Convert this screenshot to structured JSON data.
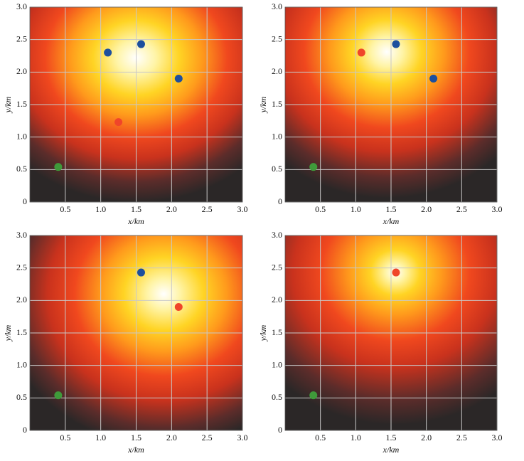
{
  "chart_data": [
    {
      "type": "scatter",
      "xlabel": "x/km",
      "ylabel": "y/km",
      "xlim": [
        0,
        3
      ],
      "ylim": [
        0,
        3
      ],
      "xticks": [
        0.5,
        {
          "value": 1,
          "label": "1.0"
        },
        1.5,
        {
          "value": 2,
          "label": "2.0"
        },
        2.5,
        {
          "value": 3,
          "label": "3.0"
        }
      ],
      "yticks": [
        0,
        0.5,
        {
          "value": 1,
          "label": "1.0"
        },
        1.5,
        {
          "value": 2,
          "label": "2.0"
        },
        2.5,
        {
          "value": 3,
          "label": "3.0"
        }
      ],
      "grid": true,
      "series": [
        {
          "color": "#1d4f9e",
          "x": [
            1.1,
            1.57,
            2.1
          ],
          "values": [
            2.3,
            2.43,
            1.9
          ]
        },
        {
          "color": "#f0452a",
          "x": [
            1.25
          ],
          "values": [
            1.23
          ]
        },
        {
          "color": "#3f9a3a",
          "x": [
            0.4
          ],
          "values": [
            0.54
          ]
        }
      ]
    },
    {
      "type": "scatter",
      "xlabel": "x/km",
      "ylabel": "y/km",
      "xlim": [
        0,
        3
      ],
      "ylim": [
        0,
        3
      ],
      "xticks": [
        0.5,
        {
          "value": 1,
          "label": "1.0"
        },
        1.5,
        {
          "value": 2,
          "label": "2.0"
        },
        2.5,
        {
          "value": 3,
          "label": "3.0"
        }
      ],
      "yticks": [
        0,
        0.5,
        {
          "value": 1,
          "label": "1.0"
        },
        1.5,
        {
          "value": 2,
          "label": "2.0"
        },
        2.5,
        {
          "value": 3,
          "label": "3.0"
        }
      ],
      "grid": true,
      "series": [
        {
          "color": "#1d4f9e",
          "x": [
            1.57,
            2.1
          ],
          "values": [
            2.43,
            1.9
          ]
        },
        {
          "color": "#f0452a",
          "x": [
            1.08
          ],
          "values": [
            2.3
          ]
        },
        {
          "color": "#3f9a3a",
          "x": [
            0.4
          ],
          "values": [
            0.54
          ]
        }
      ]
    },
    {
      "type": "scatter",
      "xlabel": "x/km",
      "ylabel": "y/km",
      "xlim": [
        0,
        3
      ],
      "ylim": [
        0,
        3
      ],
      "xticks": [
        0.5,
        {
          "value": 1,
          "label": "1.0"
        },
        1.5,
        {
          "value": 2,
          "label": "2.0"
        },
        2.5,
        {
          "value": 3,
          "label": "3.0"
        }
      ],
      "yticks": [
        0,
        0.5,
        {
          "value": 1,
          "label": "1.0"
        },
        1.5,
        {
          "value": 2,
          "label": "2.0"
        },
        2.5,
        {
          "value": 3,
          "label": "3.0"
        }
      ],
      "grid": true,
      "series": [
        {
          "color": "#1d4f9e",
          "x": [
            1.57
          ],
          "values": [
            2.43
          ]
        },
        {
          "color": "#f0452a",
          "x": [
            2.1
          ],
          "values": [
            1.9
          ]
        },
        {
          "color": "#3f9a3a",
          "x": [
            0.4
          ],
          "values": [
            0.54
          ]
        }
      ]
    },
    {
      "type": "scatter",
      "xlabel": "x/km",
      "ylabel": "y/km",
      "xlim": [
        0,
        3
      ],
      "ylim": [
        0,
        3
      ],
      "xticks": [
        0.5,
        {
          "value": 1,
          "label": "1.0"
        },
        1.5,
        {
          "value": 2,
          "label": "2.0"
        },
        2.5,
        {
          "value": 3,
          "label": "3.0"
        }
      ],
      "yticks": [
        0,
        0.5,
        {
          "value": 1,
          "label": "1.0"
        },
        1.5,
        {
          "value": 2,
          "label": "2.0"
        },
        2.5,
        {
          "value": 3,
          "label": "3.0"
        }
      ],
      "grid": true,
      "series": [
        {
          "color": "#f0452a",
          "x": [
            1.57
          ],
          "values": [
            2.43
          ]
        },
        {
          "color": "#3f9a3a",
          "x": [
            0.4
          ],
          "values": [
            0.54
          ]
        }
      ]
    }
  ]
}
